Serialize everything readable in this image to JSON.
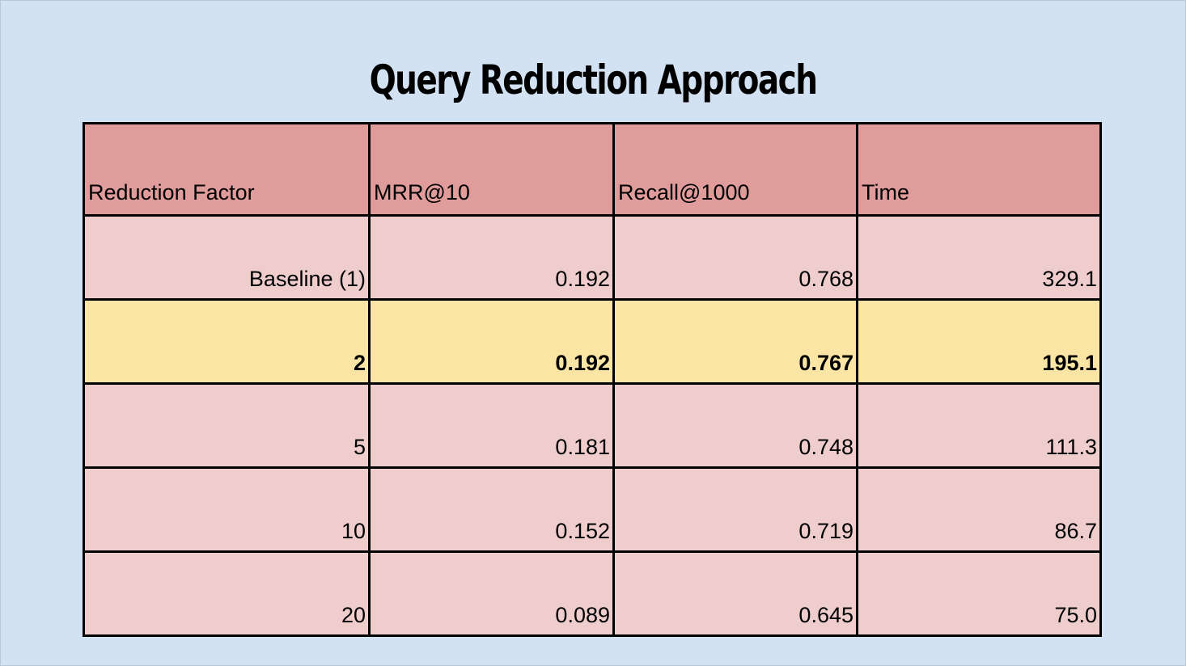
{
  "title": "Query Reduction Approach",
  "table": {
    "headers": [
      "Reduction Factor",
      "MRR@10",
      "Recall@1000",
      "Time"
    ],
    "rows": [
      {
        "cells": [
          "Baseline (1)",
          "0.192",
          "0.768",
          "329.1"
        ],
        "highlighted": false
      },
      {
        "cells": [
          "2",
          "0.192",
          "0.767",
          "195.1"
        ],
        "highlighted": true
      },
      {
        "cells": [
          "5",
          "0.181",
          "0.748",
          "111.3"
        ],
        "highlighted": false
      },
      {
        "cells": [
          "10",
          "0.152",
          "0.719",
          "86.7"
        ],
        "highlighted": false
      },
      {
        "cells": [
          "20",
          "0.089",
          "0.645",
          "75.0"
        ],
        "highlighted": false
      }
    ]
  },
  "colors": {
    "background": "#d3e2f2",
    "header_fill": "#df9c9a",
    "row_fill": "#eecdcc",
    "highlight_fill": "#fae5a4",
    "border": "#000000"
  }
}
